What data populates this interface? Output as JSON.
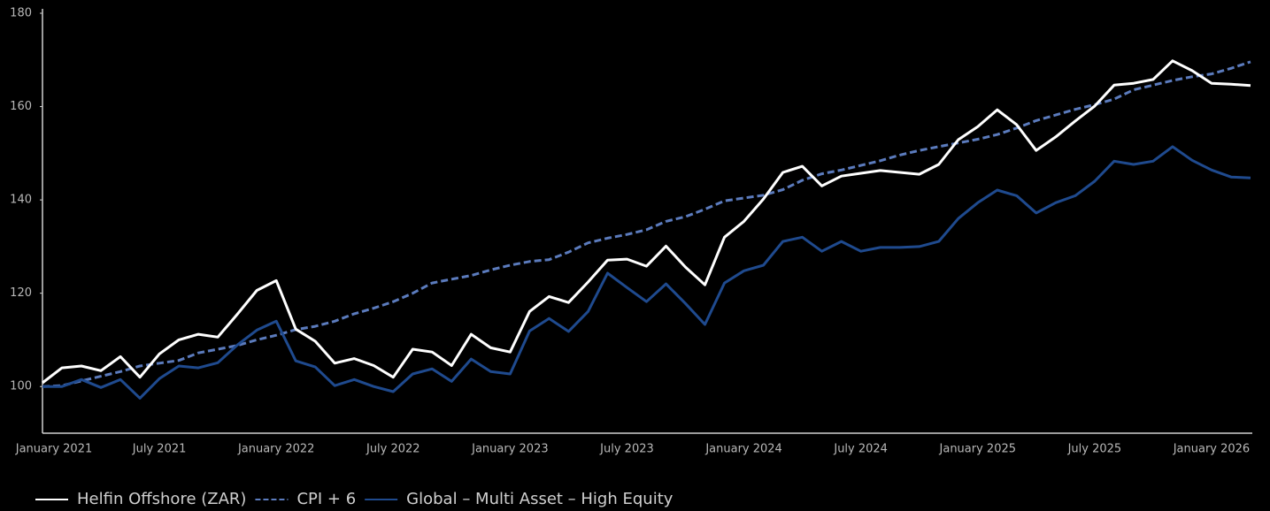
{
  "chart_data": {
    "type": "line",
    "categories": [
      "January 2021",
      null,
      null,
      null,
      null,
      null,
      "July 2021",
      null,
      null,
      null,
      null,
      null,
      "January 2022",
      null,
      null,
      null,
      null,
      null,
      "July 2022",
      null,
      null,
      null,
      null,
      null,
      "January 2023",
      null,
      null,
      null,
      null,
      null,
      "July 2023",
      null,
      null,
      null,
      null,
      null,
      "January 2024",
      null,
      null,
      null,
      null,
      null,
      "July 2024",
      null,
      null,
      null,
      null,
      null,
      "January 2025",
      null,
      null,
      null,
      null,
      null,
      "July 2025",
      null,
      null,
      null,
      null,
      null,
      "January 2026",
      null,
      null
    ],
    "series": [
      {
        "name": "Helfin Offshore (ZAR)",
        "color": "#ffffff",
        "style": "solid",
        "values": [
          100.8,
          104,
          104.4,
          103.4,
          106.4,
          102,
          107,
          110,
          111.2,
          110.6,
          115.5,
          120.6,
          122.7,
          112.3,
          109.7,
          105,
          106,
          104.5,
          102,
          108,
          107.4,
          104.5,
          111.2,
          108.3,
          107.4,
          116.1,
          119.3,
          118,
          122.4,
          127.1,
          127.3,
          125.8,
          130.1,
          125.6,
          121.8,
          132,
          135.4,
          140.2,
          145.9,
          147.2,
          143,
          145.1,
          145.7,
          146.3,
          145.9,
          145.5,
          147.6,
          152.9,
          155.7,
          159.3,
          156.1,
          150.6,
          153.5,
          156.9,
          160.1,
          164.6,
          165,
          165.8,
          169.8,
          167.7,
          165,
          164.8,
          164.5
        ]
      },
      {
        "name": "CPI + 6",
        "color": "#5b7bbd",
        "style": "dashed",
        "values": [
          100,
          100.2,
          101.2,
          102.2,
          103.2,
          104.4,
          105,
          105.6,
          107.2,
          108,
          108.8,
          110,
          111,
          112.2,
          112.9,
          114,
          115.6,
          116.8,
          118.2,
          120,
          122.2,
          123,
          123.8,
          125,
          126,
          126.8,
          127.2,
          128.8,
          130.8,
          131.8,
          132.6,
          133.6,
          135.4,
          136.4,
          138,
          139.8,
          140.4,
          141,
          142.2,
          144.2,
          145.6,
          146.4,
          147.4,
          148.4,
          149.6,
          150.6,
          151.4,
          152.2,
          153,
          154,
          155.4,
          157,
          158.2,
          159.4,
          160.4,
          161.6,
          163.6,
          164.6,
          165.6,
          166.4,
          167,
          168.2,
          169.6
        ]
      },
      {
        "name": "Global – Multi Asset – High Equity",
        "color": "#1f4a8e",
        "style": "solid",
        "values": [
          100,
          100,
          101.5,
          99.8,
          101.5,
          97.5,
          101.7,
          104.4,
          104,
          105.1,
          108.9,
          112.1,
          114,
          105.5,
          104.2,
          100.2,
          101.5,
          100,
          98.9,
          102.7,
          103.8,
          101.1,
          105.9,
          103.2,
          102.7,
          111.9,
          114.6,
          111.8,
          116.1,
          124.3,
          121.2,
          118.2,
          122,
          117.8,
          113.3,
          122.2,
          124.8,
          126,
          131.1,
          132,
          129,
          131.1,
          129,
          129.8,
          129.8,
          130,
          131.1,
          136,
          139.4,
          142.1,
          140.9,
          137.2,
          139.4,
          140.9,
          144,
          148.3,
          147.6,
          148.3,
          151.4,
          148.5,
          146.4,
          144.9,
          144.7
        ]
      }
    ],
    "ylim": [
      90,
      180
    ],
    "yticks": [
      100,
      120,
      140,
      160,
      180
    ],
    "grid": false,
    "legend": "bottom-left"
  }
}
